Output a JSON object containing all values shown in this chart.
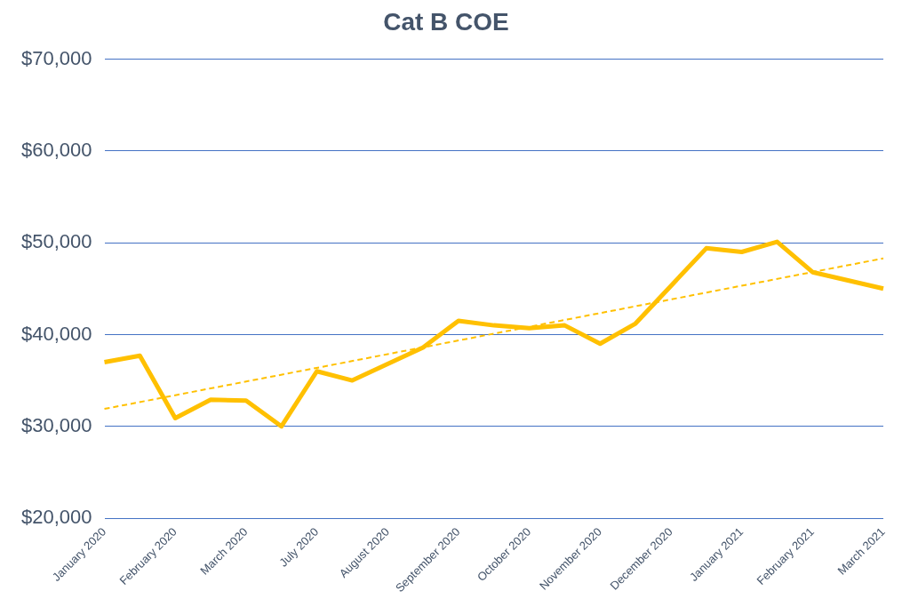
{
  "chart_data": {
    "type": "line",
    "title": "Cat B COE",
    "categories": [
      "January 2020",
      null,
      "February 2020",
      null,
      "March 2020",
      null,
      "July 2020",
      null,
      "August 2020",
      null,
      "September 2020",
      null,
      "October 2020",
      null,
      "November 2020",
      null,
      "December 2020",
      null,
      "January 2021",
      null,
      "February 2021",
      null,
      "March 2021"
    ],
    "series": [
      {
        "color": "#ffc000",
        "line_style": "solid",
        "values": [
          37000,
          37700,
          30900,
          32900,
          32800,
          30000,
          36000,
          35000,
          36800,
          38600,
          41500,
          41000,
          40700,
          41000,
          39000,
          41200,
          45300,
          49400,
          49000,
          50100,
          46800,
          45900,
          45000
        ]
      },
      {
        "type": "line",
        "color": "#ffc000",
        "line_style": "dashed",
        "values": [
          31900,
          null,
          null,
          null,
          null,
          null,
          null,
          null,
          null,
          null,
          null,
          null,
          null,
          null,
          null,
          null,
          null,
          null,
          null,
          null,
          null,
          null,
          48300
        ]
      }
    ],
    "ylim": [
      20000,
      70000
    ],
    "yticks": [
      {
        "value": 20000,
        "label": "$20,000"
      },
      {
        "value": 30000,
        "label": "$30,000"
      },
      {
        "value": 40000,
        "label": "$40,000"
      },
      {
        "value": 50000,
        "label": "$50,000"
      },
      {
        "value": 60000,
        "label": "$60,000"
      },
      {
        "value": 70000,
        "label": "$70,000"
      }
    ],
    "grid": "y",
    "legend": false,
    "marker": "none"
  }
}
